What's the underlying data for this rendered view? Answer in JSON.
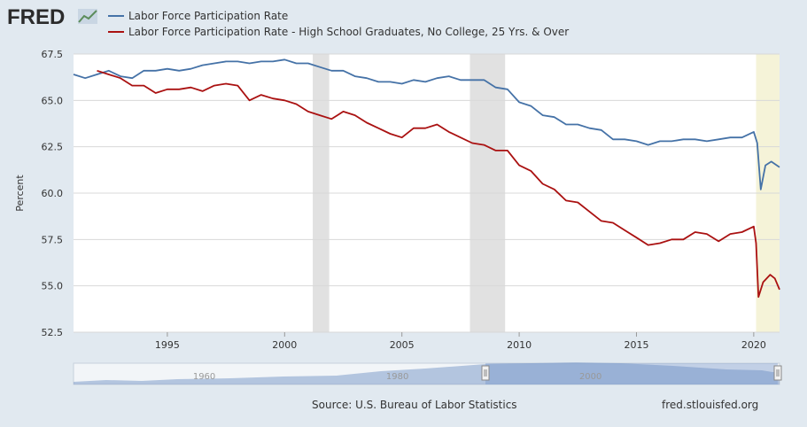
{
  "logo": {
    "text": "FRED",
    "alt": "FRED logo"
  },
  "chart_data": {
    "type": "line",
    "ylabel": "Percent",
    "xlim": [
      1991.0,
      2021.1
    ],
    "ylim": [
      52.5,
      67.5
    ],
    "y_ticks": [
      {
        "value": 52.5,
        "label": "52.5"
      },
      {
        "value": 55.0,
        "label": "55.0"
      },
      {
        "value": 57.5,
        "label": "57.5"
      },
      {
        "value": 60.0,
        "label": "60.0"
      },
      {
        "value": 62.5,
        "label": "62.5"
      },
      {
        "value": 65.0,
        "label": "65.0"
      },
      {
        "value": 67.5,
        "label": "67.5"
      }
    ],
    "x_ticks": [
      {
        "value": 1995,
        "label": "1995"
      },
      {
        "value": 2000,
        "label": "2000"
      },
      {
        "value": 2005,
        "label": "2005"
      },
      {
        "value": 2010,
        "label": "2010"
      },
      {
        "value": 2015,
        "label": "2015"
      },
      {
        "value": 2020,
        "label": "2020"
      }
    ],
    "grid": "horizontal",
    "legend_position": "top-left",
    "recessions": [
      {
        "start": 2001.2,
        "end": 2001.9,
        "color": "#e1e1e1"
      },
      {
        "start": 2007.9,
        "end": 2009.4,
        "color": "#e1e1e1"
      },
      {
        "start": 2020.1,
        "end": 2021.1,
        "color": "#f5f3d8"
      }
    ],
    "series": [
      {
        "name": "Labor Force Participation Rate",
        "color": "#4572a7",
        "points": [
          [
            1991.0,
            66.4
          ],
          [
            1991.5,
            66.2
          ],
          [
            1992.0,
            66.4
          ],
          [
            1992.5,
            66.6
          ],
          [
            1993.0,
            66.3
          ],
          [
            1993.5,
            66.2
          ],
          [
            1994.0,
            66.6
          ],
          [
            1994.5,
            66.6
          ],
          [
            1995.0,
            66.7
          ],
          [
            1995.5,
            66.6
          ],
          [
            1996.0,
            66.7
          ],
          [
            1996.5,
            66.9
          ],
          [
            1997.0,
            67.0
          ],
          [
            1997.5,
            67.1
          ],
          [
            1998.0,
            67.1
          ],
          [
            1998.5,
            67.0
          ],
          [
            1999.0,
            67.1
          ],
          [
            1999.5,
            67.1
          ],
          [
            2000.0,
            67.2
          ],
          [
            2000.5,
            67.0
          ],
          [
            2001.0,
            67.0
          ],
          [
            2001.5,
            66.8
          ],
          [
            2002.0,
            66.6
          ],
          [
            2002.5,
            66.6
          ],
          [
            2003.0,
            66.3
          ],
          [
            2003.5,
            66.2
          ],
          [
            2004.0,
            66.0
          ],
          [
            2004.5,
            66.0
          ],
          [
            2005.0,
            65.9
          ],
          [
            2005.5,
            66.1
          ],
          [
            2006.0,
            66.0
          ],
          [
            2006.5,
            66.2
          ],
          [
            2007.0,
            66.3
          ],
          [
            2007.5,
            66.1
          ],
          [
            2008.0,
            66.1
          ],
          [
            2008.5,
            66.1
          ],
          [
            2009.0,
            65.7
          ],
          [
            2009.5,
            65.6
          ],
          [
            2010.0,
            64.9
          ],
          [
            2010.5,
            64.7
          ],
          [
            2011.0,
            64.2
          ],
          [
            2011.5,
            64.1
          ],
          [
            2012.0,
            63.7
          ],
          [
            2012.5,
            63.7
          ],
          [
            2013.0,
            63.5
          ],
          [
            2013.5,
            63.4
          ],
          [
            2014.0,
            62.9
          ],
          [
            2014.5,
            62.9
          ],
          [
            2015.0,
            62.8
          ],
          [
            2015.5,
            62.6
          ],
          [
            2016.0,
            62.8
          ],
          [
            2016.5,
            62.8
          ],
          [
            2017.0,
            62.9
          ],
          [
            2017.5,
            62.9
          ],
          [
            2018.0,
            62.8
          ],
          [
            2018.5,
            62.9
          ],
          [
            2019.0,
            63.0
          ],
          [
            2019.5,
            63.0
          ],
          [
            2020.0,
            63.3
          ],
          [
            2020.15,
            62.7
          ],
          [
            2020.3,
            60.2
          ],
          [
            2020.5,
            61.5
          ],
          [
            2020.75,
            61.7
          ],
          [
            2021.1,
            61.4
          ]
        ]
      },
      {
        "name": "Labor Force Participation Rate - High School Graduates, No College, 25 Yrs. & Over",
        "color": "#aa1111",
        "points": [
          [
            1992.0,
            66.6
          ],
          [
            1992.5,
            66.4
          ],
          [
            1993.0,
            66.2
          ],
          [
            1993.5,
            65.8
          ],
          [
            1994.0,
            65.8
          ],
          [
            1994.5,
            65.4
          ],
          [
            1995.0,
            65.6
          ],
          [
            1995.5,
            65.6
          ],
          [
            1996.0,
            65.7
          ],
          [
            1996.5,
            65.5
          ],
          [
            1997.0,
            65.8
          ],
          [
            1997.5,
            65.9
          ],
          [
            1998.0,
            65.8
          ],
          [
            1998.5,
            65.0
          ],
          [
            1999.0,
            65.3
          ],
          [
            1999.5,
            65.1
          ],
          [
            2000.0,
            65.0
          ],
          [
            2000.5,
            64.8
          ],
          [
            2001.0,
            64.4
          ],
          [
            2001.5,
            64.2
          ],
          [
            2002.0,
            64.0
          ],
          [
            2002.5,
            64.4
          ],
          [
            2003.0,
            64.2
          ],
          [
            2003.5,
            63.8
          ],
          [
            2004.0,
            63.5
          ],
          [
            2004.5,
            63.2
          ],
          [
            2005.0,
            63.0
          ],
          [
            2005.5,
            63.5
          ],
          [
            2006.0,
            63.5
          ],
          [
            2006.5,
            63.7
          ],
          [
            2007.0,
            63.3
          ],
          [
            2007.5,
            63.0
          ],
          [
            2008.0,
            62.7
          ],
          [
            2008.5,
            62.6
          ],
          [
            2009.0,
            62.3
          ],
          [
            2009.5,
            62.3
          ],
          [
            2010.0,
            61.5
          ],
          [
            2010.5,
            61.2
          ],
          [
            2011.0,
            60.5
          ],
          [
            2011.5,
            60.2
          ],
          [
            2012.0,
            59.6
          ],
          [
            2012.5,
            59.5
          ],
          [
            2013.0,
            59.0
          ],
          [
            2013.5,
            58.5
          ],
          [
            2014.0,
            58.4
          ],
          [
            2014.5,
            58.0
          ],
          [
            2015.0,
            57.6
          ],
          [
            2015.5,
            57.2
          ],
          [
            2016.0,
            57.3
          ],
          [
            2016.5,
            57.5
          ],
          [
            2017.0,
            57.5
          ],
          [
            2017.5,
            57.9
          ],
          [
            2018.0,
            57.8
          ],
          [
            2018.5,
            57.4
          ],
          [
            2019.0,
            57.8
          ],
          [
            2019.5,
            57.9
          ],
          [
            2020.0,
            58.2
          ],
          [
            2020.1,
            57.3
          ],
          [
            2020.2,
            54.4
          ],
          [
            2020.4,
            55.2
          ],
          [
            2020.7,
            55.6
          ],
          [
            2020.9,
            55.4
          ],
          [
            2021.1,
            54.8
          ]
        ]
      }
    ]
  },
  "navigator": {
    "tick_labels": [
      {
        "value": 1960,
        "label": "1960"
      },
      {
        "value": 1980,
        "label": "1980"
      },
      {
        "value": 2000,
        "label": "2000"
      }
    ]
  },
  "footer": {
    "source": "Source: U.S. Bureau of Labor Statistics",
    "site": "fred.stlouisfed.org"
  }
}
